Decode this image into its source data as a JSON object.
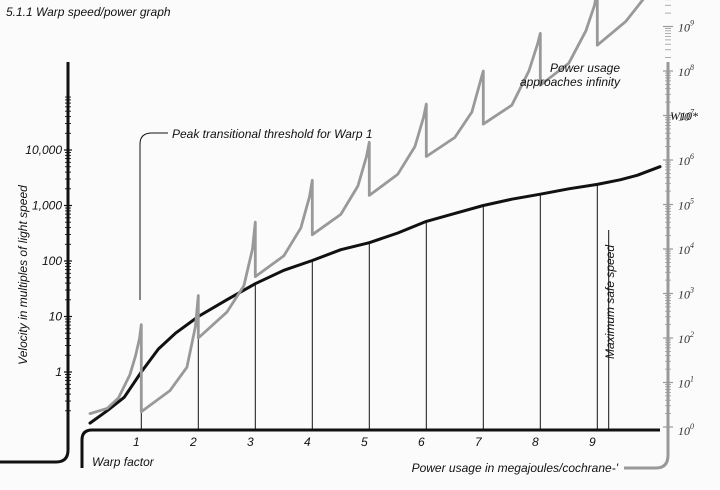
{
  "figure_label": "5.1.1 Warp speed/power graph",
  "chart_data": {
    "type": "line",
    "title": "",
    "left_axis": {
      "label": "Velocity in multiples of light speed",
      "scale": "log",
      "range": [
        0.1,
        100000
      ],
      "tick_labels": [
        "1",
        "10",
        "100",
        "1,000",
        "10,000"
      ],
      "tick_values": [
        1,
        10,
        100,
        1000,
        10000
      ]
    },
    "right_axis": {
      "label": "Power usage in megajoules/cochrane-'",
      "scale": "log",
      "range": [
        1,
        10000000000
      ],
      "tick_labels": [
        {
          "base": "10",
          "exp": "0"
        },
        {
          "base": "10",
          "exp": "1"
        },
        {
          "base": "10",
          "exp": "2"
        },
        {
          "base": "10",
          "exp": "3"
        },
        {
          "base": "10",
          "exp": "4"
        },
        {
          "base": "10",
          "exp": "5"
        },
        {
          "base": "10",
          "exp": "6"
        },
        {
          "base": "10",
          "exp": "7"
        },
        {
          "base": "10",
          "exp": "8"
        },
        {
          "base": "10",
          "exp": "9"
        },
        {
          "base": "W10",
          "exp": "10"
        }
      ],
      "tick_values": [
        1,
        10,
        100,
        1000,
        10000,
        100000,
        1000000,
        10000000,
        100000000,
        1000000000,
        10000000000
      ],
      "extra_label": "W10*"
    },
    "x_axis": {
      "label": "Warp factor",
      "range": [
        0.1,
        10.1
      ],
      "tick_labels": [
        "1",
        "2",
        "3",
        "4",
        "5",
        "6",
        "7",
        "8",
        "9"
      ],
      "tick_values": [
        1,
        2,
        3,
        4,
        5,
        6,
        7,
        8,
        9
      ]
    },
    "series": [
      {
        "key": "velocity",
        "axis": "left",
        "color": "#111111",
        "x": [
          0.1,
          0.4,
          0.7,
          1.0,
          1.3,
          1.6,
          2.0,
          2.5,
          3.0,
          3.5,
          4.0,
          4.5,
          5.0,
          5.5,
          6.0,
          6.5,
          7.0,
          7.5,
          8.0,
          8.5,
          9.0,
          9.4,
          9.7,
          10.1
        ],
        "y": [
          0.12,
          0.2,
          0.35,
          1.0,
          2.6,
          5.0,
          10,
          20,
          39,
          68,
          102,
          160,
          214,
          320,
          516,
          720,
          1000,
          1300,
          1600,
          2000,
          2400,
          2900,
          3500,
          5000
        ]
      },
      {
        "key": "power",
        "axis": "right",
        "color": "#999999",
        "points": [
          [
            0.1,
            2
          ],
          [
            0.4,
            2.6
          ],
          [
            0.6,
            4.5
          ],
          [
            0.8,
            15
          ],
          [
            0.9,
            40
          ],
          [
            0.97,
            100
          ],
          [
            1.0,
            200
          ],
          [
            1.0,
            2.2
          ],
          [
            1.5,
            6.5
          ],
          [
            1.8,
            22
          ],
          [
            1.95,
            180
          ],
          [
            2.0,
            900
          ],
          [
            2.0,
            100
          ],
          [
            2.5,
            380
          ],
          [
            2.8,
            1500
          ],
          [
            2.95,
            10000
          ],
          [
            3.0,
            40000
          ],
          [
            3.0,
            2400
          ],
          [
            3.5,
            7000
          ],
          [
            3.8,
            30000
          ],
          [
            3.95,
            150000
          ],
          [
            4.0,
            350000
          ],
          [
            4.0,
            21000
          ],
          [
            4.5,
            60000
          ],
          [
            4.8,
            260000
          ],
          [
            4.95,
            1200000
          ],
          [
            5.0,
            2500000
          ],
          [
            5.0,
            160000
          ],
          [
            5.5,
            480000
          ],
          [
            5.8,
            2000000
          ],
          [
            5.95,
            9000000
          ],
          [
            6.0,
            18000000
          ],
          [
            6.0,
            1200000
          ],
          [
            6.5,
            3200000
          ],
          [
            6.8,
            12000000
          ],
          [
            6.95,
            60000000
          ],
          [
            7.0,
            100000000
          ],
          [
            7.0,
            6400000
          ],
          [
            7.5,
            17000000
          ],
          [
            7.8,
            100000000
          ],
          [
            7.95,
            400000000
          ],
          [
            8.0,
            700000000
          ],
          [
            8.0,
            48000000
          ],
          [
            8.5,
            150000000
          ],
          [
            8.8,
            800000000
          ],
          [
            8.95,
            3000000000
          ],
          [
            9.0,
            7000000000
          ],
          [
            9.0,
            380000000
          ],
          [
            9.5,
            1300000000
          ],
          [
            9.8,
            4000000000
          ],
          [
            10.1,
            15000000000
          ]
        ]
      }
    ],
    "vertical_lines_x": [
      1,
      2,
      3,
      4,
      5,
      6,
      7,
      8,
      9,
      9.2
    ],
    "annotations": [
      {
        "key": "peak",
        "text": "Peak transitional threshold for Warp 1"
      },
      {
        "key": "infinity_1",
        "text": "Power usage"
      },
      {
        "key": "infinity_2",
        "text": "approaches infinity"
      },
      {
        "key": "max_safe",
        "text": "Maximum safe speed"
      }
    ]
  }
}
